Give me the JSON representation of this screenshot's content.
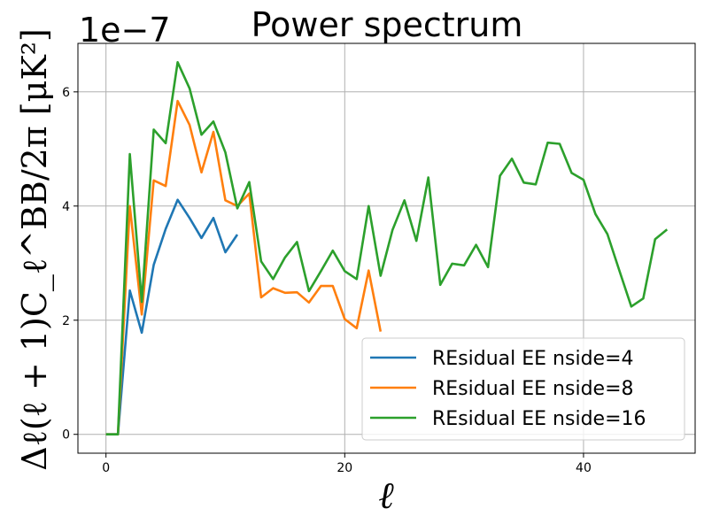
{
  "chart_data": {
    "type": "line",
    "title": "Power spectrum",
    "xlabel": "ℓ",
    "ylabel": "Δℓ(ℓ + 1)C_ℓ^BB/2π [μK²]",
    "y_offset_text": "1e−7",
    "xlim": [
      -2.35,
      49.35
    ],
    "ylim": [
      -0.33,
      6.85
    ],
    "x_ticks": [
      0,
      20,
      40
    ],
    "y_ticks": [
      0,
      2,
      4,
      6
    ],
    "grid": true,
    "legend_position": "bottom-right",
    "series": [
      {
        "name": "REsidual EE nside=4",
        "color": "#1f77b4",
        "x": [
          0,
          1,
          2,
          3,
          4,
          5,
          6,
          7,
          8,
          9,
          10,
          11
        ],
        "y": [
          0.0,
          0.0,
          2.52,
          1.78,
          2.97,
          3.6,
          4.11,
          3.79,
          3.44,
          3.79,
          3.19,
          3.5
        ]
      },
      {
        "name": "REsidual EE nside=8",
        "color": "#ff7f0e",
        "x": [
          0,
          1,
          2,
          3,
          4,
          5,
          6,
          7,
          8,
          9,
          10,
          11,
          12,
          13,
          14,
          15,
          16,
          17,
          18,
          19,
          20,
          21,
          22,
          23
        ],
        "y": [
          0.0,
          0.0,
          4.0,
          2.1,
          4.45,
          4.35,
          5.84,
          5.42,
          4.59,
          5.3,
          4.1,
          4.0,
          4.22,
          2.4,
          2.56,
          2.48,
          2.49,
          2.31,
          2.6,
          2.6,
          2.02,
          1.86,
          2.87,
          1.8
        ]
      },
      {
        "name": "REsidual EE nside=16",
        "color": "#2ca02c",
        "x": [
          0,
          1,
          2,
          3,
          4,
          5,
          6,
          7,
          8,
          9,
          10,
          11,
          12,
          13,
          14,
          15,
          16,
          17,
          18,
          19,
          20,
          21,
          22,
          23,
          24,
          25,
          26,
          27,
          28,
          29,
          30,
          31,
          32,
          33,
          34,
          35,
          36,
          37,
          38,
          39,
          40,
          41,
          42,
          43,
          44,
          45,
          46,
          47
        ],
        "y": [
          0.0,
          0.0,
          4.91,
          2.32,
          5.34,
          5.1,
          6.52,
          6.06,
          5.25,
          5.48,
          4.94,
          3.96,
          4.42,
          3.03,
          2.72,
          3.1,
          3.37,
          2.51,
          2.86,
          3.22,
          2.86,
          2.72,
          4.0,
          2.78,
          3.58,
          4.1,
          3.39,
          4.5,
          2.62,
          2.99,
          2.96,
          3.32,
          2.93,
          4.53,
          4.83,
          4.41,
          4.38,
          5.11,
          5.09,
          4.58,
          4.46,
          3.86,
          3.51,
          2.87,
          2.24,
          2.38,
          3.42,
          3.59
        ]
      }
    ]
  }
}
